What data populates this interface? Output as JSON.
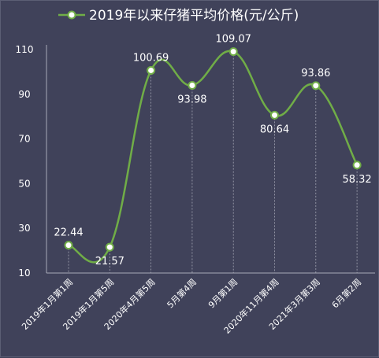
{
  "chart_data": {
    "type": "line",
    "title": "",
    "xlabel": "",
    "ylabel": "",
    "legend": {
      "position": "top",
      "entries": [
        "2019年以来仔猪平均价格(元/公斤)"
      ]
    },
    "categories": [
      "2019年1月第1周",
      "2019年1月第5周",
      "2020年4月第5周",
      "5月第4周",
      "9月第1周",
      "2020年11月第4周",
      "2021年3月第3周",
      "6月第2周"
    ],
    "series": [
      {
        "name": "2019年以来仔猪平均价格(元/公斤)",
        "values": [
          22.44,
          21.57,
          100.69,
          93.98,
          109.07,
          80.64,
          93.86,
          58.32
        ],
        "value_labels": [
          "22.44",
          "21.57",
          "100.69",
          "93.98",
          "109.07",
          "80.64",
          "93.86",
          "58.32"
        ]
      }
    ],
    "ylim": [
      10,
      110
    ],
    "yticks": [
      10,
      30,
      50,
      70,
      90,
      110
    ],
    "ytick_labels": [
      "10",
      "30",
      "50",
      "70",
      "90",
      "110"
    ],
    "grid": false,
    "drop_lines": true,
    "smooth": true,
    "colors": {
      "background": "#40425a",
      "line": "#70ad47",
      "text": "#ffffff",
      "axis": "#a9abb8",
      "drop_line": "#a4a6b4",
      "marker_fill": "#ffffff"
    }
  }
}
